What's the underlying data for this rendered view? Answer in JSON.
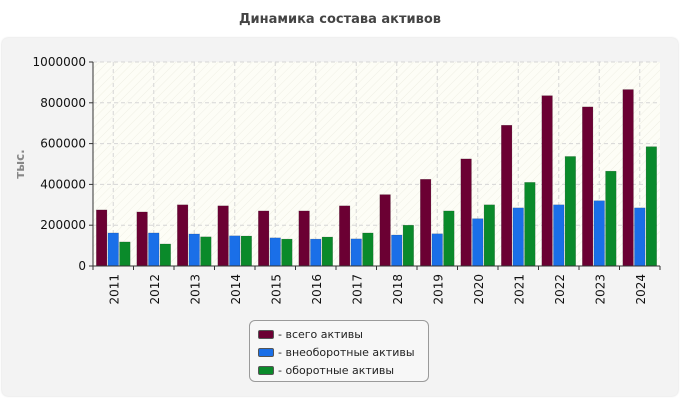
{
  "chart_data": {
    "type": "bar",
    "title": "Динамика состава активов",
    "ylabel": "тыс.",
    "xlabel": "",
    "ylim": [
      0,
      1000000
    ],
    "yticks": [
      0,
      200000,
      400000,
      600000,
      800000,
      1000000
    ],
    "grid": true,
    "legend_position": "bottom",
    "categories": [
      "2011",
      "2012",
      "2013",
      "2014",
      "2015",
      "2016",
      "2017",
      "2018",
      "2019",
      "2020",
      "2021",
      "2022",
      "2023",
      "2024"
    ],
    "series": [
      {
        "name": "- всего активы",
        "color": "#6b0033",
        "values": [
          275000,
          265000,
          300000,
          295000,
          270000,
          270000,
          295000,
          350000,
          425000,
          525000,
          690000,
          835000,
          780000,
          865000
        ]
      },
      {
        "name": "- внеоборотные активы",
        "color": "#1a6fe8",
        "values": [
          162000,
          162000,
          157000,
          148000,
          138000,
          132000,
          133000,
          152000,
          158000,
          232000,
          285000,
          300000,
          320000,
          285000
        ]
      },
      {
        "name": "- оборотные активы",
        "color": "#0a8a2a",
        "values": [
          118000,
          108000,
          143000,
          147000,
          132000,
          142000,
          162000,
          200000,
          270000,
          300000,
          410000,
          537000,
          465000,
          585000
        ]
      }
    ]
  }
}
